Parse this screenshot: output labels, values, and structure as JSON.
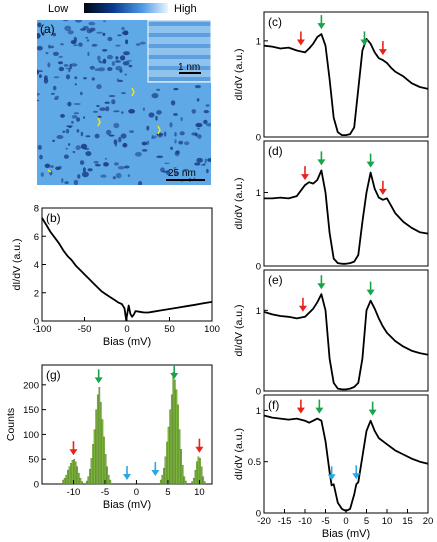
{
  "panel_a": {
    "label": "(a)",
    "colorbar": {
      "low": "Low",
      "high": "High"
    },
    "scalebar_main": "25 nm",
    "scalebar_inset": "1 nm"
  },
  "chart_data": [
    {
      "id": "b",
      "type": "line",
      "label": "(b)",
      "xlabel": "Bias (mV)",
      "ylabel": "dI/dV (a.u.)",
      "xlim": [
        -100,
        100
      ],
      "ylim": [
        0,
        8
      ],
      "xticks": [
        -100,
        -50,
        0,
        50,
        100
      ],
      "yticks": [
        0,
        2,
        4,
        6,
        8
      ],
      "series": [
        {
          "x": [
            -100,
            -95,
            -90,
            -85,
            -80,
            -75,
            -70,
            -65,
            -60,
            -55,
            -50,
            -45,
            -40,
            -35,
            -30,
            -25,
            -20,
            -15,
            -10,
            -6,
            -3,
            -1,
            0,
            2,
            4,
            6,
            8,
            10,
            15,
            20,
            25,
            30,
            40,
            50,
            60,
            70,
            80,
            90,
            100
          ],
          "y": [
            7.3,
            6.8,
            6.3,
            5.9,
            5.5,
            5.0,
            4.6,
            4.3,
            3.9,
            3.6,
            3.3,
            3.0,
            2.7,
            2.4,
            2.1,
            1.9,
            1.7,
            1.5,
            1.3,
            1.2,
            0.9,
            0.05,
            0.4,
            1.1,
            0.5,
            0.3,
            0.45,
            0.7,
            0.65,
            0.6,
            0.6,
            0.65,
            0.75,
            0.85,
            0.95,
            1.05,
            1.15,
            1.25,
            1.35
          ]
        }
      ]
    },
    {
      "id": "c",
      "type": "line",
      "label": "(c)",
      "xlabel": "",
      "ylabel": "dI/dV (a.u.)",
      "xlim": [
        -20,
        20
      ],
      "ylim": [
        0,
        1.3
      ],
      "yticks": [
        0,
        1
      ],
      "series": [
        {
          "x": [
            -20,
            -18,
            -16,
            -14,
            -12,
            -10,
            -9,
            -8,
            -7,
            -6,
            -5,
            -4,
            -3,
            -2,
            -1,
            0,
            1,
            2,
            3,
            4,
            5,
            6,
            7,
            8,
            9,
            10,
            11,
            12,
            14,
            16,
            18,
            20
          ],
          "y": [
            0.95,
            0.94,
            0.92,
            0.93,
            0.9,
            0.88,
            0.92,
            0.97,
            1.04,
            1.07,
            0.95,
            0.6,
            0.2,
            0.05,
            0.02,
            0.02,
            0.03,
            0.1,
            0.5,
            0.9,
            1.02,
            0.97,
            0.88,
            0.82,
            0.8,
            0.77,
            0.72,
            0.68,
            0.63,
            0.56,
            0.52,
            0.5
          ]
        }
      ],
      "arrows": [
        {
          "x": -11,
          "color": "red"
        },
        {
          "x": -6,
          "color": "green"
        },
        {
          "x": 4.5,
          "color": "green"
        },
        {
          "x": 9,
          "color": "red"
        }
      ]
    },
    {
      "id": "d",
      "type": "line",
      "label": "(d)",
      "xlabel": "",
      "ylabel": "dI/dV (a.u.)",
      "xlim": [
        -20,
        20
      ],
      "ylim": [
        0,
        1.7
      ],
      "yticks": [
        0,
        1
      ],
      "series": [
        {
          "x": [
            -20,
            -18,
            -16,
            -14,
            -12,
            -10,
            -9,
            -8,
            -7,
            -6,
            -5,
            -4,
            -3,
            -2,
            -1,
            0,
            1,
            2,
            3,
            4,
            5,
            6,
            7,
            8,
            9,
            10,
            11,
            12,
            14,
            16,
            18,
            20
          ],
          "y": [
            0.92,
            0.92,
            0.93,
            0.92,
            0.95,
            1.1,
            1.14,
            1.12,
            1.17,
            1.3,
            1.0,
            0.45,
            0.1,
            0.04,
            0.03,
            0.03,
            0.04,
            0.06,
            0.15,
            0.6,
            1.0,
            1.27,
            1.05,
            0.93,
            0.9,
            0.92,
            0.82,
            0.72,
            0.6,
            0.52,
            0.46,
            0.44
          ]
        }
      ],
      "arrows": [
        {
          "x": -10,
          "color": "red"
        },
        {
          "x": -6,
          "color": "green"
        },
        {
          "x": 6,
          "color": "green"
        },
        {
          "x": 9,
          "color": "red"
        }
      ]
    },
    {
      "id": "e",
      "type": "line",
      "label": "(e)",
      "xlabel": "",
      "ylabel": "dI/dV (a.u.)",
      "xlim": [
        -20,
        20
      ],
      "ylim": [
        0,
        1.5
      ],
      "yticks": [
        0,
        1
      ],
      "series": [
        {
          "x": [
            -20,
            -18,
            -16,
            -14,
            -12,
            -10,
            -9,
            -8,
            -7,
            -6,
            -5,
            -4,
            -3,
            -2,
            -1,
            0,
            1,
            2,
            3,
            4,
            5,
            6,
            7,
            8,
            9,
            10,
            12,
            14,
            16,
            18,
            20
          ],
          "y": [
            0.98,
            0.95,
            0.93,
            0.92,
            0.9,
            0.92,
            0.97,
            1.02,
            1.1,
            1.2,
            1.0,
            0.4,
            0.1,
            0.03,
            0.02,
            0.02,
            0.03,
            0.05,
            0.1,
            0.4,
            1.0,
            1.12,
            1.02,
            0.9,
            0.8,
            0.72,
            0.62,
            0.55,
            0.5,
            0.47,
            0.45
          ]
        }
      ],
      "arrows": [
        {
          "x": -10.5,
          "color": "red"
        },
        {
          "x": -6,
          "color": "green"
        },
        {
          "x": 6,
          "color": "green"
        }
      ]
    },
    {
      "id": "f",
      "type": "line",
      "label": "(f)",
      "xlabel": "Bias (mV)",
      "ylabel": "dI/dV (a.u.)",
      "xlim": [
        -20,
        20
      ],
      "ylim": [
        0,
        1.15
      ],
      "yticks": [
        0,
        0.5,
        1
      ],
      "xticks": [
        -20,
        -15,
        -10,
        -5,
        0,
        5,
        10,
        15,
        20
      ],
      "series": [
        {
          "x": [
            -20,
            -18,
            -16,
            -14,
            -12,
            -10,
            -9,
            -8,
            -7,
            -6,
            -5,
            -4,
            -3.5,
            -3,
            -2,
            -1,
            0,
            1,
            2,
            2.5,
            3,
            4,
            5,
            6,
            7,
            8,
            9,
            10,
            12,
            14,
            16,
            18,
            20
          ],
          "y": [
            0.95,
            0.93,
            0.92,
            0.91,
            0.92,
            0.9,
            0.88,
            0.9,
            0.92,
            0.9,
            0.7,
            0.4,
            0.27,
            0.28,
            0.1,
            0.04,
            0.02,
            0.04,
            0.18,
            0.28,
            0.3,
            0.55,
            0.8,
            0.9,
            0.8,
            0.73,
            0.7,
            0.67,
            0.61,
            0.57,
            0.53,
            0.5,
            0.48
          ]
        }
      ],
      "arrows": [
        {
          "x": -11,
          "color": "red"
        },
        {
          "x": -6.5,
          "color": "green"
        },
        {
          "x": -3.5,
          "color": "blue"
        },
        {
          "x": 2.5,
          "color": "blue"
        },
        {
          "x": 6.5,
          "color": "green"
        }
      ]
    },
    {
      "id": "g",
      "type": "bar",
      "label": "(g)",
      "xlabel": "Bias (mV)",
      "ylabel": "Counts",
      "xlim": [
        -15,
        12
      ],
      "ylim": [
        0,
        240
      ],
      "xticks": [
        -10,
        -5,
        0,
        5,
        10
      ],
      "yticks": [
        0,
        50,
        100,
        150,
        200
      ],
      "bin_width": 0.25,
      "bins": [
        [
          -11.75,
          8
        ],
        [
          -11.5,
          12
        ],
        [
          -11.25,
          18
        ],
        [
          -11,
          28
        ],
        [
          -10.75,
          35
        ],
        [
          -10.5,
          42
        ],
        [
          -10.25,
          48
        ],
        [
          -10,
          50
        ],
        [
          -9.75,
          45
        ],
        [
          -9.5,
          35
        ],
        [
          -9.25,
          22
        ],
        [
          -9,
          12
        ],
        [
          -8.75,
          5
        ],
        [
          -8,
          6
        ],
        [
          -7.75,
          15
        ],
        [
          -7.5,
          30
        ],
        [
          -7.25,
          52
        ],
        [
          -7,
          80
        ],
        [
          -6.75,
          110
        ],
        [
          -6.5,
          150
        ],
        [
          -6.25,
          180
        ],
        [
          -6,
          195
        ],
        [
          -5.75,
          165
        ],
        [
          -5.5,
          130
        ],
        [
          -5.25,
          95
        ],
        [
          -5,
          60
        ],
        [
          -4.75,
          35
        ],
        [
          -4.5,
          18
        ],
        [
          -4.25,
          8
        ],
        [
          3.75,
          8
        ],
        [
          4,
          18
        ],
        [
          4.25,
          32
        ],
        [
          4.5,
          55
        ],
        [
          4.75,
          85
        ],
        [
          5,
          115
        ],
        [
          5.25,
          150
        ],
        [
          5.5,
          180
        ],
        [
          5.75,
          225
        ],
        [
          6,
          210
        ],
        [
          6.25,
          190
        ],
        [
          6.5,
          160
        ],
        [
          6.75,
          110
        ],
        [
          7,
          70
        ],
        [
          7.25,
          38
        ],
        [
          7.5,
          15
        ],
        [
          7.75,
          6
        ],
        [
          8.75,
          5
        ],
        [
          9,
          12
        ],
        [
          9.25,
          28
        ],
        [
          9.5,
          45
        ],
        [
          9.75,
          55
        ],
        [
          10,
          52
        ],
        [
          10.25,
          35
        ],
        [
          10.5,
          15
        ],
        [
          10.75,
          5
        ]
      ],
      "arrows": [
        {
          "x": -10,
          "color": "red"
        },
        {
          "x": -6,
          "color": "green"
        },
        {
          "x": -1.5,
          "color": "blue"
        },
        {
          "x": 3,
          "color": "blue"
        },
        {
          "x": 6,
          "color": "green"
        },
        {
          "x": 10,
          "color": "red"
        }
      ]
    }
  ],
  "colors": {
    "red": "#e8231b",
    "green": "#1aa34a",
    "blue": "#2aa7e6",
    "bar": "#7db83a",
    "map_bg": "#5ea9e6",
    "map_dark": "#1c3f88"
  }
}
